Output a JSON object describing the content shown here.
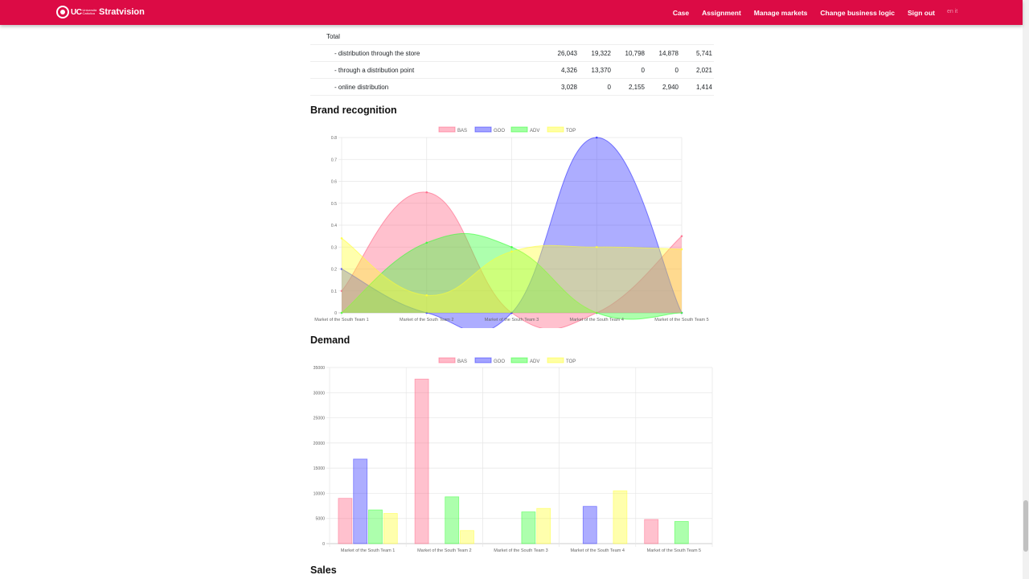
{
  "navbar": {
    "logo_text": "UC",
    "logo_sub": "Università Cattolica",
    "brand": "Stratvision",
    "links": [
      "Case",
      "Assignment",
      "Manage markets",
      "Change business logic",
      "Sign out"
    ],
    "lang": "en  it",
    "color": "#dc0b45"
  },
  "table": {
    "rows": [
      {
        "label": "Total",
        "values": [
          "",
          "",
          "",
          "",
          ""
        ]
      },
      {
        "label": "- distribution through the store",
        "values": [
          "26,043",
          "19,322",
          "10,798",
          "14,878",
          "5,741"
        ]
      },
      {
        "label": "- through a distribution point",
        "values": [
          "4,326",
          "13,370",
          "0",
          "0",
          "2,021"
        ]
      },
      {
        "label": "- online distribution",
        "values": [
          "3,028",
          "0",
          "2,155",
          "2,940",
          "1,414"
        ]
      }
    ]
  },
  "sections": {
    "brand_title": "Brand recognition",
    "demand_title": "Demand",
    "sales_title": "Sales"
  },
  "chart_data": [
    {
      "type": "area",
      "title": "Brand recognition",
      "categories": [
        "Market of the South Team 1",
        "Market of the South Team 2",
        "Market of the South Team 3",
        "Market of the South Team 4",
        "Market of the South Team 5"
      ],
      "series": [
        {
          "name": "BAS",
          "values": [
            0.1,
            0.55,
            0,
            0,
            0.35
          ],
          "color": "#ff6384"
        },
        {
          "name": "GOO",
          "values": [
            0.2,
            0,
            0,
            0.8,
            0
          ],
          "color": "#3333ff"
        },
        {
          "name": "ADV",
          "values": [
            0,
            0.32,
            0.3,
            0,
            0
          ],
          "color": "#33ff33"
        },
        {
          "name": "TOP",
          "values": [
            0.34,
            0.08,
            0.28,
            0.3,
            0.29
          ],
          "color": "#ffff33"
        }
      ],
      "ylim": [
        0,
        0.8
      ],
      "yticks": [
        "0",
        "0.1",
        "0.2",
        "0.3",
        "0.4",
        "0.5",
        "0.6",
        "0.7",
        "0.8"
      ],
      "legend": "top"
    },
    {
      "type": "bar",
      "title": "Demand",
      "categories": [
        "Market of the South Team 1",
        "Market of the South Team 2",
        "Market of the South Team 3",
        "Market of the South Team 4",
        "Market of the South Team 5"
      ],
      "series": [
        {
          "name": "BAS",
          "values": [
            9000,
            32700,
            0,
            0,
            4800
          ],
          "color": "#ff6384"
        },
        {
          "name": "GOO",
          "values": [
            16800,
            0,
            0,
            7400,
            0
          ],
          "color": "#3333ff"
        },
        {
          "name": "ADV",
          "values": [
            6700,
            9300,
            6300,
            0,
            4400
          ],
          "color": "#33ff33"
        },
        {
          "name": "TOP",
          "values": [
            6000,
            2600,
            7000,
            10500,
            0
          ],
          "color": "#ffff33"
        }
      ],
      "ylim": [
        0,
        35000
      ],
      "yticks": [
        "0",
        "5000",
        "10000",
        "15000",
        "20000",
        "25000",
        "30000",
        "35000"
      ],
      "legend": "top"
    }
  ]
}
